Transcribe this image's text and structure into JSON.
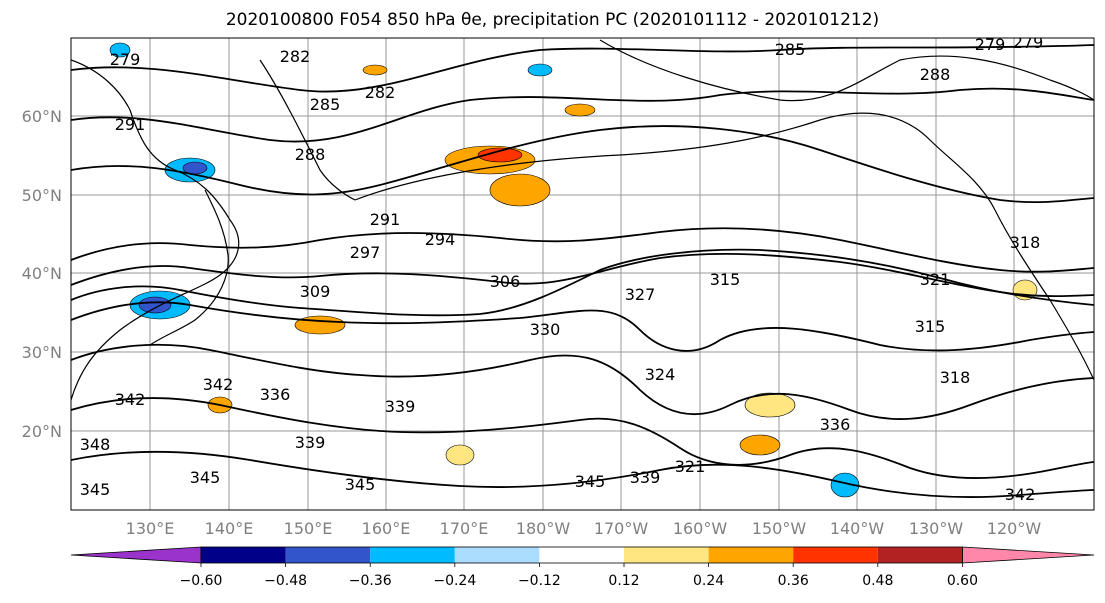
{
  "title": "2020100800 F054 850 hPa θe, precipitation PC (2020101112 - 2020101212)",
  "map": {
    "lat_ticks": [
      "20°N",
      "30°N",
      "40°N",
      "50°N",
      "60°N"
    ],
    "lon_ticks": [
      "130°E",
      "140°E",
      "150°E",
      "160°E",
      "170°E",
      "180°W",
      "170°W",
      "160°W",
      "150°W",
      "140°W",
      "130°W",
      "120°W"
    ],
    "contour_labels": [
      "279",
      "282",
      "279",
      "282",
      "279",
      "288",
      "285",
      "291",
      "288",
      "285",
      "291",
      "297",
      "294",
      "309",
      "306",
      "315",
      "318",
      "321",
      "330",
      "327",
      "324",
      "315",
      "318",
      "321",
      "336",
      "342",
      "339",
      "345",
      "342",
      "339",
      "345",
      "339",
      "345",
      "336",
      "342",
      "345",
      "348"
    ]
  },
  "colorbar": {
    "colors": [
      "#9933cc",
      "#000088",
      "#3355cc",
      "#00bbff",
      "#aaddff",
      "#ffffff",
      "#ffe680",
      "#ffa500",
      "#ff3300",
      "#b22222",
      "#ff88aa"
    ],
    "tick_labels": [
      "−0.60",
      "−0.48",
      "−0.36",
      "−0.24",
      "−0.12",
      "0.12",
      "0.24",
      "0.36",
      "0.48",
      "0.60"
    ]
  }
}
